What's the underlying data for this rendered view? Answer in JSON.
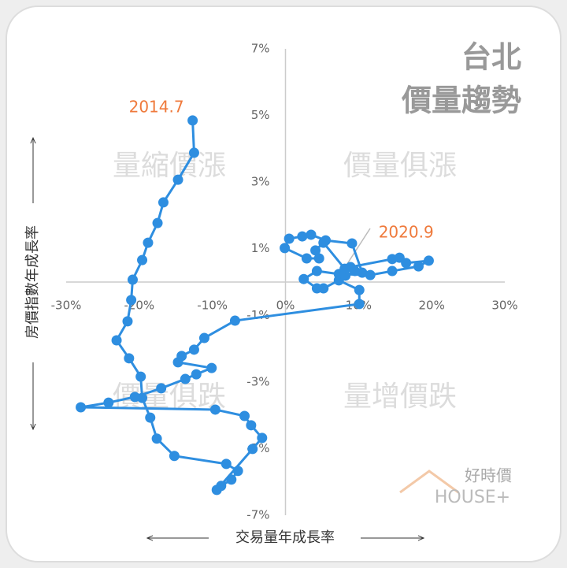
{
  "chart_data": {
    "type": "line",
    "title": "台北",
    "subtitle": "價量趨勢",
    "x_label": "交易量年成長率",
    "y_label": "房價指數年成長率",
    "quadrant_labels": [
      "量縮價漲",
      "價量俱漲",
      "價量俱跌",
      "量增價跌"
    ],
    "annotations": [
      "2014.7",
      "2020.9"
    ],
    "logo": "好時價",
    "logo_sub": "HOUSE+",
    "xlim": [
      -30,
      30
    ],
    "xticks": [
      {
        "value": -30,
        "label": "-30%"
      },
      {
        "value": -20,
        "label": "-20%"
      },
      {
        "value": -10,
        "label": "-10%"
      },
      {
        "value": 0,
        "label": "0%"
      },
      {
        "value": 10,
        "label": "10%"
      },
      {
        "value": 20,
        "label": "20%"
      },
      {
        "value": 30,
        "label": "30%"
      }
    ],
    "ylim": [
      -7,
      7
    ],
    "yticks": [
      {
        "value": 7,
        "label": "7%"
      },
      {
        "value": 5,
        "label": "5%"
      },
      {
        "value": 3,
        "label": "3%"
      },
      {
        "value": 1,
        "label": "1%"
      },
      {
        "value": -1,
        "label": "-1%"
      },
      {
        "value": -3,
        "label": "-3%"
      },
      {
        "value": -5,
        "label": "-5%"
      },
      {
        "value": -7,
        "label": "-7%"
      }
    ],
    "series": [
      {
        "color": "#2e8ee0",
        "x": [
          -12.7,
          -12.5,
          -14.7,
          -16.7,
          -17.5,
          -18.8,
          -19.6,
          -20.9,
          -21.1,
          -21.6,
          -23.1,
          -21.4,
          -19.8,
          -19.6,
          -18.5,
          -17.6,
          -15.2,
          -8.1,
          -6.5,
          -7.4,
          -8.8,
          -9.4,
          -4.5,
          -3.2,
          -4.7,
          -5.6,
          -9.6,
          -28.0,
          -24.2,
          -20.6,
          -17.0,
          -13.7,
          -12.2,
          -10.1,
          -14.7,
          -14.2,
          -12.5,
          -11.1,
          -6.9,
          10.1,
          10.1,
          7.3,
          5.2,
          4.3,
          2.5,
          4.3,
          7.3,
          11.6,
          14.6,
          18.2,
          19.6,
          16.5,
          15.6,
          14.6,
          8.9,
          8.2,
          9.5,
          10.5,
          9.1,
          5.5,
          3.5,
          2.3,
          0.5,
          -0.1,
          2.9,
          4.6,
          4.1,
          5.2,
          8.1
        ],
        "y": [
          4.85,
          3.88,
          3.07,
          2.39,
          1.77,
          1.18,
          0.66,
          0.07,
          -0.54,
          -1.18,
          -1.75,
          -2.29,
          -2.84,
          -3.48,
          -4.07,
          -4.7,
          -5.22,
          -5.46,
          -5.67,
          -5.93,
          -6.12,
          -6.24,
          -5.01,
          -4.68,
          -4.3,
          -4.02,
          -3.83,
          -3.76,
          -3.62,
          -3.45,
          -3.19,
          -2.91,
          -2.77,
          -2.58,
          -2.41,
          -2.22,
          -2.03,
          -1.68,
          -1.16,
          -0.66,
          -0.24,
          0.05,
          -0.19,
          -0.19,
          0.09,
          0.33,
          0.24,
          0.21,
          0.33,
          0.47,
          0.64,
          0.57,
          0.73,
          0.69,
          0.45,
          0.19,
          0.33,
          0.28,
          1.16,
          1.25,
          1.42,
          1.37,
          1.3,
          1.02,
          0.71,
          0.71,
          0.95,
          1.18,
          0.4
        ]
      }
    ]
  }
}
